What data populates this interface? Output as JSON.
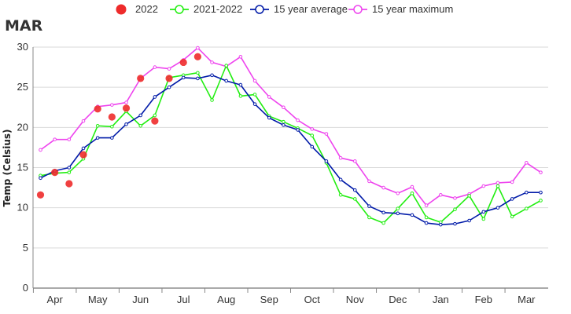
{
  "chart_data": {
    "type": "line",
    "title": "MAR",
    "ylabel": "Temp (Celsius)",
    "ylim": [
      0,
      30
    ],
    "yticks": [
      0,
      5,
      10,
      15,
      20,
      25,
      30
    ],
    "month_labels": [
      "Apr",
      "May",
      "Jun",
      "Jul",
      "Aug",
      "Sep",
      "Oct",
      "Nov",
      "Dec",
      "Jan",
      "Feb",
      "Mar"
    ],
    "grid": "horizontal",
    "legend_position": "top",
    "x": [
      1,
      2,
      3,
      4,
      5,
      6,
      7,
      8,
      9,
      10,
      11,
      12,
      13,
      14,
      15,
      16,
      17,
      18,
      19,
      20,
      21,
      22,
      23,
      24,
      25,
      26,
      27,
      28,
      29,
      30,
      31,
      32,
      33,
      34,
      35,
      36
    ],
    "series": [
      {
        "name": "2022",
        "kind": "points",
        "color": "#ee2b2b",
        "values": [
          11.6,
          14.4,
          13.0,
          16.6,
          22.3,
          21.3,
          22.4,
          26.1,
          20.8,
          26.1,
          28.1,
          28.8,
          null,
          null,
          null,
          null,
          null,
          null,
          null,
          null,
          null,
          null,
          null,
          null,
          null,
          null,
          null,
          null,
          null,
          null,
          null,
          null,
          null,
          null,
          null,
          null
        ]
      },
      {
        "name": "2021-2022",
        "kind": "line",
        "color": "#22ee11",
        "values": [
          14.0,
          14.3,
          14.4,
          16.1,
          20.2,
          20.1,
          22.0,
          20.2,
          21.5,
          26.2,
          26.5,
          26.8,
          23.4,
          27.7,
          23.9,
          24.1,
          21.4,
          20.7,
          19.9,
          19.0,
          15.6,
          11.6,
          11.1,
          8.8,
          8.1,
          9.9,
          11.8,
          8.8,
          8.2,
          9.8,
          11.5,
          8.6,
          12.7,
          8.9,
          9.9,
          10.9
        ]
      },
      {
        "name": "15 year average",
        "kind": "line",
        "color": "#001aa8",
        "values": [
          13.7,
          14.6,
          15.0,
          17.4,
          18.7,
          18.7,
          20.4,
          21.5,
          23.8,
          25.0,
          26.2,
          26.1,
          26.5,
          25.8,
          25.3,
          22.9,
          21.2,
          20.3,
          19.7,
          17.6,
          15.8,
          13.5,
          12.2,
          10.2,
          9.4,
          9.3,
          9.1,
          8.1,
          7.9,
          8.0,
          8.4,
          9.5,
          10.0,
          11.1,
          11.9,
          11.9
        ]
      },
      {
        "name": "15 year maximum",
        "kind": "line",
        "color": "#ee44ee",
        "values": [
          17.2,
          18.5,
          18.5,
          20.8,
          22.6,
          22.8,
          23.1,
          26.1,
          27.5,
          27.3,
          28.4,
          29.9,
          28.1,
          27.6,
          28.8,
          25.8,
          23.8,
          22.5,
          20.9,
          19.8,
          19.2,
          16.2,
          15.8,
          13.3,
          12.5,
          11.8,
          12.6,
          10.3,
          11.6,
          11.2,
          11.7,
          12.7,
          13.1,
          13.2,
          15.6,
          14.4
        ]
      }
    ]
  }
}
